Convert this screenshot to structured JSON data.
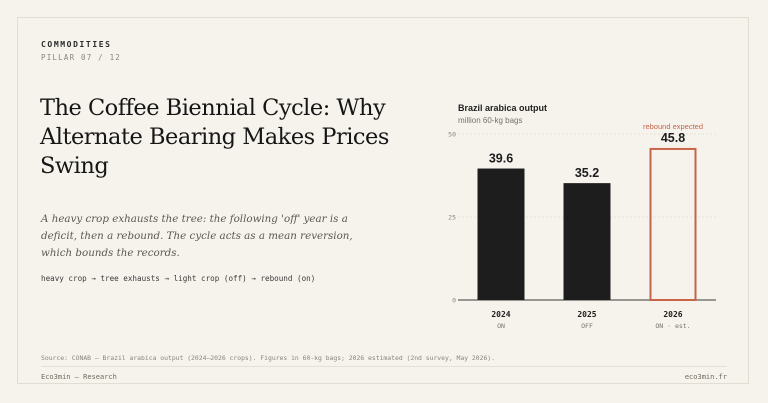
{
  "header": {
    "kicker": "COMMODITIES",
    "pillar": "PILLAR 07 / 12"
  },
  "article": {
    "title": "The Coffee Biennial Cycle: Why Alternate Bearing Makes Prices Swing",
    "lede": "A heavy crop exhausts the tree: the following 'off' year is a deficit, then a rebound. The cycle acts as a mean reversion, which bounds the records.",
    "flow": "heavy crop → tree exhausts → light crop (off) → rebound (on)"
  },
  "footer": {
    "source": "Source: CONAB — Brazil arabica output (2024–2026 crops). Figures in 60-kg bags; 2026 estimated (2nd survey, May 2026).",
    "left": "Eco3min — Research",
    "right": "eco3min.fr"
  },
  "chart_data": {
    "type": "bar",
    "title": "Brazil arabica output",
    "subtitle": "million 60-kg bags",
    "categories": [
      "2024",
      "2025",
      "2026"
    ],
    "sublabels": [
      "ON",
      "OFF",
      "ON · est."
    ],
    "values": [
      39.6,
      35.2,
      45.8
    ],
    "value_labels": [
      "39.6",
      "35.2",
      "45.8"
    ],
    "ylim": [
      0,
      50
    ],
    "yticks": [
      0,
      25,
      50
    ],
    "grid": true,
    "annotations": [
      {
        "category": "2026",
        "text": "rebound expected"
      }
    ],
    "styles": [
      "filled",
      "filled",
      "outline"
    ],
    "colors": {
      "bar": "#1d1d1d",
      "estimate": "#c8644a",
      "annotation": "#c8644a"
    }
  }
}
